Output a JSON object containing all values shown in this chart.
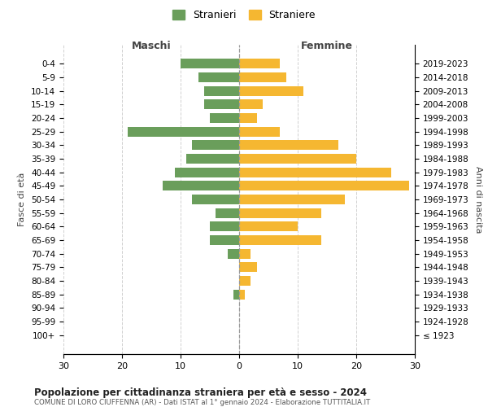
{
  "age_groups": [
    "0-4",
    "5-9",
    "10-14",
    "15-19",
    "20-24",
    "25-29",
    "30-34",
    "35-39",
    "40-44",
    "45-49",
    "50-54",
    "55-59",
    "60-64",
    "65-69",
    "70-74",
    "75-79",
    "80-84",
    "85-89",
    "90-94",
    "95-99",
    "100+"
  ],
  "birth_years": [
    "2019-2023",
    "2014-2018",
    "2009-2013",
    "2004-2008",
    "1999-2003",
    "1994-1998",
    "1989-1993",
    "1984-1988",
    "1979-1983",
    "1974-1978",
    "1969-1973",
    "1964-1968",
    "1959-1963",
    "1954-1958",
    "1949-1953",
    "1944-1948",
    "1939-1943",
    "1934-1938",
    "1929-1933",
    "1924-1928",
    "≤ 1923"
  ],
  "males": [
    10,
    7,
    6,
    6,
    5,
    19,
    8,
    9,
    11,
    13,
    8,
    4,
    5,
    5,
    2,
    0,
    0,
    1,
    0,
    0,
    0
  ],
  "females": [
    7,
    8,
    11,
    4,
    3,
    7,
    17,
    20,
    26,
    29,
    18,
    14,
    10,
    14,
    2,
    3,
    2,
    1,
    0,
    0,
    0
  ],
  "male_color": "#6a9e5b",
  "female_color": "#f5b731",
  "male_label": "Stranieri",
  "female_label": "Straniere",
  "title": "Popolazione per cittadinanza straniera per età e sesso - 2024",
  "subtitle": "COMUNE DI LORO CIUFFENNA (AR) - Dati ISTAT al 1° gennaio 2024 - Elaborazione TUTTITALIA.IT",
  "xlabel_left": "Maschi",
  "xlabel_right": "Femmine",
  "ylabel_left": "Fasce di età",
  "ylabel_right": "Anni di nascita",
  "xlim": 30,
  "background_color": "#ffffff",
  "grid_color": "#cccccc"
}
